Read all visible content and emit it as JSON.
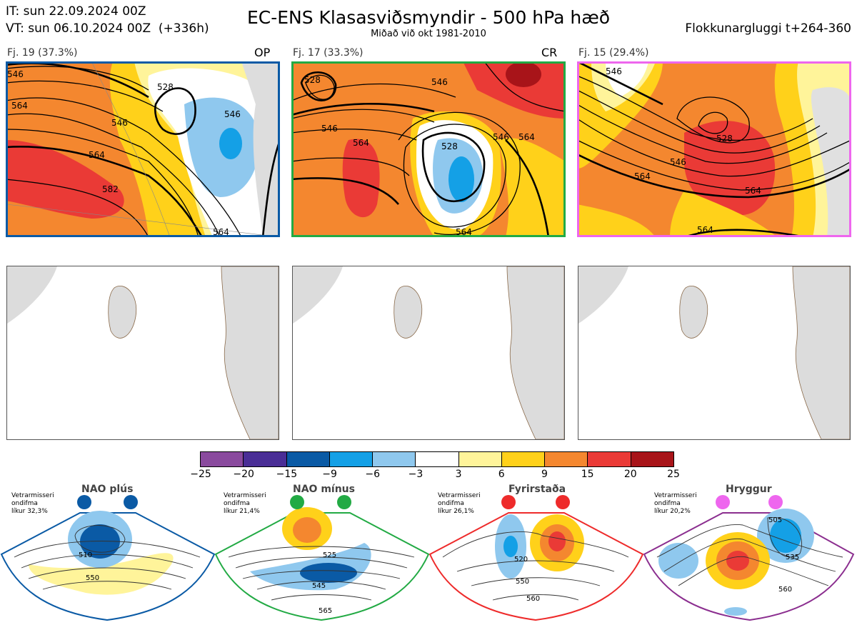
{
  "header": {
    "it_line": "IT: sun 22.09.2024 00Z",
    "vt_line": "VT: sun 06.10.2024 00Z  (+336h)",
    "title": "EC-ENS Klasasviðsmyndir - 500 hPa hæð",
    "subtitle": "Miðað við okt 1981-2010",
    "window": "Flokkunargluggi t+264-360"
  },
  "panels": [
    {
      "label": "Fj. 19 (37.3%)",
      "tag": "OP",
      "border": "#0a5aa5",
      "contours": [
        "546",
        "528",
        "546",
        "546",
        "564",
        "582",
        "564",
        "564"
      ]
    },
    {
      "label": "Fj. 17 (33.3%)",
      "tag": "CR",
      "border": "#22aa44",
      "contours": [
        "528",
        "546",
        "546",
        "564",
        "528",
        "546",
        "564",
        "564"
      ]
    },
    {
      "label": "Fj. 15 (29.4%)",
      "tag": "",
      "border": "#ee66ee",
      "contours": [
        "546",
        "528",
        "546",
        "564",
        "564",
        "564"
      ]
    }
  ],
  "colorbar": {
    "colors": [
      "#8a4a9e",
      "#4a2e96",
      "#0a5aa5",
      "#14a0e6",
      "#8fc8ee",
      "#ffffff",
      "#fff49a",
      "#ffd11a",
      "#f4872f",
      "#ea3a36",
      "#a81419"
    ],
    "ticks": [
      "−25",
      "−20",
      "−15",
      "−9",
      "−6",
      "−3",
      "3",
      "6",
      "9",
      "15",
      "20",
      "25"
    ]
  },
  "regimes": [
    {
      "title": "NAO plús",
      "note": "Vetrarmisseri\nondifma\nlíkur 32,3%",
      "color": "#0a5aa5",
      "labels": [
        "510",
        "550"
      ]
    },
    {
      "title": "NAO mínus",
      "note": "Vetrarmisseri\nondifma\nlíkur 21,4%",
      "color": "#22aa44",
      "labels": [
        "525",
        "545",
        "565"
      ]
    },
    {
      "title": "Fyrirstaða",
      "note": "Vetrarmisseri\nondifma\nlíkur 26,1%",
      "color": "#ee2b2b",
      "labels": [
        "520",
        "550",
        "560"
      ]
    },
    {
      "title": "Hryggur",
      "note": "Vetrarmisseri\nondifma\nlíkur 20,2%",
      "color": "#ee66ee",
      "labels": [
        "505",
        "535",
        "560"
      ]
    }
  ]
}
